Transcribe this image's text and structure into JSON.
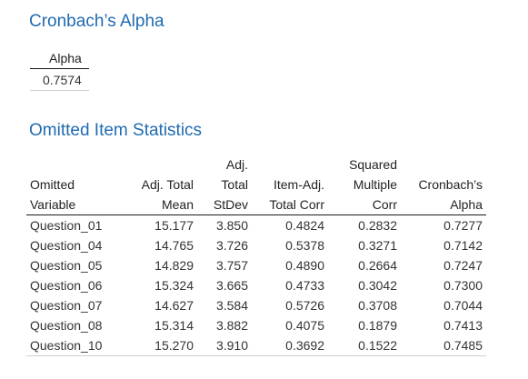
{
  "cronbach_section": {
    "title": "Cronbach’s Alpha",
    "column": "Alpha",
    "value": "0.7574"
  },
  "omitted_section": {
    "title": "Omitted Item Statistics",
    "headers": {
      "omitted": [
        "",
        "",
        "Omitted",
        "Variable"
      ],
      "mean": [
        "",
        "",
        "Adj. Total",
        "Mean"
      ],
      "stdev": [
        "",
        "Adj.",
        "Total",
        "StDev"
      ],
      "corr": [
        "",
        "",
        "Item-Adj.",
        "Total Corr"
      ],
      "smc": [
        "",
        "Squared",
        "Multiple",
        "Corr"
      ],
      "alpha": [
        "",
        "",
        "Cronbach’s",
        "Alpha"
      ]
    },
    "rows": [
      {
        "variable": "Question_01",
        "mean": "15.177",
        "stdev": "3.850",
        "corr": "0.4824",
        "smc": "0.2832",
        "alpha": "0.7277"
      },
      {
        "variable": "Question_04",
        "mean": "14.765",
        "stdev": "3.726",
        "corr": "0.5378",
        "smc": "0.3271",
        "alpha": "0.7142"
      },
      {
        "variable": "Question_05",
        "mean": "14.829",
        "stdev": "3.757",
        "corr": "0.4890",
        "smc": "0.2664",
        "alpha": "0.7247"
      },
      {
        "variable": "Question_06",
        "mean": "15.324",
        "stdev": "3.665",
        "corr": "0.4733",
        "smc": "0.3042",
        "alpha": "0.7300"
      },
      {
        "variable": "Question_07",
        "mean": "14.627",
        "stdev": "3.584",
        "corr": "0.5726",
        "smc": "0.3708",
        "alpha": "0.7044"
      },
      {
        "variable": "Question_08",
        "mean": "15.314",
        "stdev": "3.882",
        "corr": "0.4075",
        "smc": "0.1879",
        "alpha": "0.7413"
      },
      {
        "variable": "Question_10",
        "mean": "15.270",
        "stdev": "3.910",
        "corr": "0.3692",
        "smc": "0.1522",
        "alpha": "0.7485"
      }
    ]
  },
  "colors": {
    "title": "#1f6bb0",
    "text": "#333333",
    "rule": "#1a1a1a"
  }
}
